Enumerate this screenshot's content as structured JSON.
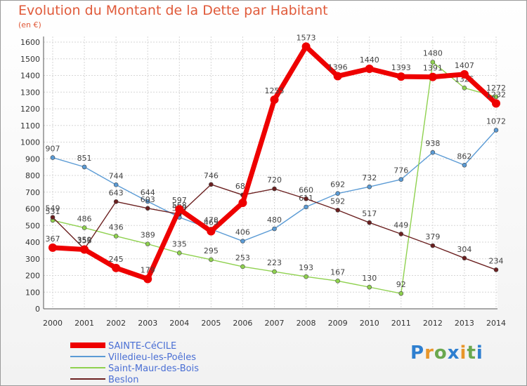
{
  "chart_data": {
    "type": "line",
    "title": "Evolution du Montant de la Dette par Habitant",
    "subtitle": "(en €)",
    "x": [
      "2000",
      "2001",
      "2002",
      "2003",
      "2004",
      "2005",
      "2006",
      "2007",
      "2008",
      "2009",
      "2010",
      "2011",
      "2012",
      "2013",
      "2014"
    ],
    "ylim": [
      0,
      1600
    ],
    "yticks": [
      0,
      100,
      200,
      300,
      400,
      500,
      600,
      700,
      800,
      900,
      1000,
      1100,
      1200,
      1300,
      1400,
      1500,
      1600
    ],
    "grid": true,
    "legend_position": "bottom-left",
    "series": [
      {
        "name": "Villedieu-les-Poêles",
        "color": "#5b9bd5",
        "values": [
          907,
          851,
          744,
          644,
          549,
          478,
          406,
          480,
          611,
          692,
          732,
          776,
          938,
          862,
          1072
        ],
        "labels": [
          "907",
          "851",
          "744",
          "644",
          "549",
          "478",
          "406",
          "480",
          "611",
          "692",
          "732",
          "776",
          "938",
          "862",
          "1072"
        ]
      },
      {
        "name": "Saint-Maur-des-Bois",
        "color": "#8fd14f",
        "values": [
          531,
          486,
          436,
          389,
          335,
          295,
          253,
          223,
          193,
          167,
          130,
          92,
          1480,
          1325,
          1272
        ],
        "labels": [
          "531",
          "486",
          "436",
          "389",
          "335",
          "295",
          "253",
          "223",
          "193",
          "167",
          "130",
          "92",
          "1480",
          "1325",
          "1272"
        ]
      },
      {
        "name": "Beslon",
        "color": "#6b2020",
        "values": [
          549,
          359,
          643,
          603,
          568,
          746,
          683,
          720,
          660,
          592,
          517,
          449,
          379,
          304,
          234
        ],
        "labels": [
          "549",
          "359",
          "643",
          "603",
          "568",
          "746",
          "683",
          "720",
          "660",
          "592",
          "517",
          "449",
          "379",
          "304",
          "234"
        ]
      },
      {
        "name": "SAINTE-CéCILE",
        "color": "#ee0000",
        "values": [
          367,
          356,
          245,
          179,
          597,
          465,
          636,
          1255,
          1573,
          1396,
          1440,
          1393,
          1391,
          1407,
          1232
        ],
        "labels": [
          "367",
          "356",
          "245",
          "179",
          "597",
          "465",
          "",
          "1255",
          "1573",
          "1396",
          "1440",
          "1393",
          "1391",
          "1407",
          "1232"
        ]
      }
    ]
  },
  "legend": [
    {
      "name": "SAINTE-CéCILE",
      "color": "#ee0000"
    },
    {
      "name": "Villedieu-les-Poêles",
      "color": "#5b9bd5"
    },
    {
      "name": "Saint-Maur-des-Bois",
      "color": "#8fd14f"
    },
    {
      "name": "Beslon",
      "color": "#6b2020"
    }
  ],
  "logo": [
    "P",
    "r",
    "o",
    "x",
    "i",
    "t",
    "i"
  ]
}
